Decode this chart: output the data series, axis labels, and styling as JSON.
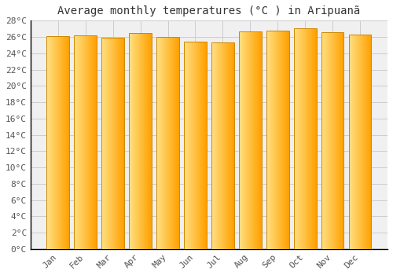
{
  "title": "Average monthly temperatures (°C ) in Aripuanã",
  "months": [
    "Jan",
    "Feb",
    "Mar",
    "Apr",
    "May",
    "Jun",
    "Jul",
    "Aug",
    "Sep",
    "Oct",
    "Nov",
    "Dec"
  ],
  "values": [
    26.1,
    26.2,
    25.9,
    26.5,
    26.0,
    25.4,
    25.3,
    26.7,
    26.8,
    27.1,
    26.6,
    26.3
  ],
  "bar_color_left": "#FFE082",
  "bar_color_right": "#FFA000",
  "ylim": [
    0,
    28
  ],
  "ytick_step": 2,
  "background_color": "#ffffff",
  "plot_bg_color": "#f0f0f0",
  "grid_color": "#cccccc",
  "title_fontsize": 10,
  "tick_fontsize": 8,
  "font_family": "monospace",
  "bar_edge_color": "#CC8800",
  "bar_width": 0.82
}
